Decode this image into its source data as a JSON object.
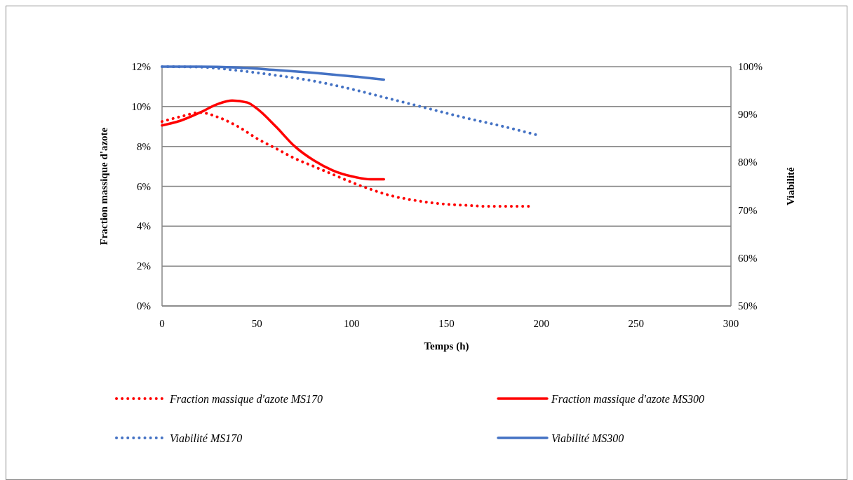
{
  "chart_data": {
    "type": "line",
    "xlabel": "Temps (h)",
    "ylabel": "Fraction massique d'azote",
    "y2label": "Viabilité",
    "xlim": [
      0,
      300
    ],
    "xticks": [
      0,
      50,
      100,
      150,
      200,
      250,
      300
    ],
    "ylim": [
      0,
      12
    ],
    "yticks": [
      {
        "value": 0,
        "label": "0%"
      },
      {
        "value": 2,
        "label": "2%"
      },
      {
        "value": 4,
        "label": "4%"
      },
      {
        "value": 6,
        "label": "6%"
      },
      {
        "value": 8,
        "label": "8%"
      },
      {
        "value": 10,
        "label": "10%"
      },
      {
        "value": 12,
        "label": "12%"
      }
    ],
    "y2lim": [
      50,
      100
    ],
    "y2ticks": [
      {
        "value": 50,
        "label": "50%"
      },
      {
        "value": 60,
        "label": "60%"
      },
      {
        "value": 70,
        "label": "70%"
      },
      {
        "value": 80,
        "label": "80%"
      },
      {
        "value": 90,
        "label": "90%"
      },
      {
        "value": 100,
        "label": "100%"
      }
    ],
    "grid": "y",
    "legend": "bottom",
    "marker": "none",
    "series": [
      {
        "name": "Fraction massique d'azote MS170",
        "color": "#ff0000",
        "line_style": "dotted",
        "x": [
          0,
          10,
          20,
          30,
          40,
          50,
          60,
          70,
          80,
          90,
          100,
          110,
          120,
          130,
          140,
          150,
          160,
          170,
          180,
          195
        ],
        "values": [
          9.25,
          9.5,
          9.7,
          9.45,
          9.0,
          8.4,
          7.9,
          7.4,
          7.0,
          6.6,
          6.2,
          5.85,
          5.55,
          5.35,
          5.2,
          5.1,
          5.05,
          5.0,
          5.0,
          5.0
        ]
      },
      {
        "name": "Fraction massique d'azote MS300",
        "color": "#ff0000",
        "line_style": "solid",
        "x": [
          0,
          10,
          20,
          30,
          37,
          45,
          50,
          60,
          70,
          80,
          90,
          100,
          110,
          117
        ],
        "values": [
          9.05,
          9.3,
          9.7,
          10.15,
          10.3,
          10.2,
          9.9,
          9.0,
          8.0,
          7.3,
          6.8,
          6.5,
          6.35,
          6.35
        ]
      },
      {
        "name": "Viabilité MS170",
        "color": "#4472c4",
        "line_style": "dotted",
        "axis": "y2",
        "x": [
          0,
          20,
          40,
          60,
          80,
          100,
          120,
          140,
          160,
          180,
          197
        ],
        "values": [
          100,
          99.9,
          99.2,
          98.2,
          97.0,
          95.3,
          93.3,
          91.3,
          89.3,
          87.5,
          85.8
        ]
      },
      {
        "name": "Viabilité MS300",
        "color": "#4472c4",
        "line_style": "solid",
        "axis": "y2",
        "x": [
          0,
          20,
          40,
          60,
          80,
          100,
          117
        ],
        "values": [
          100,
          100,
          99.8,
          99.3,
          98.7,
          98.0,
          97.3
        ]
      }
    ]
  }
}
